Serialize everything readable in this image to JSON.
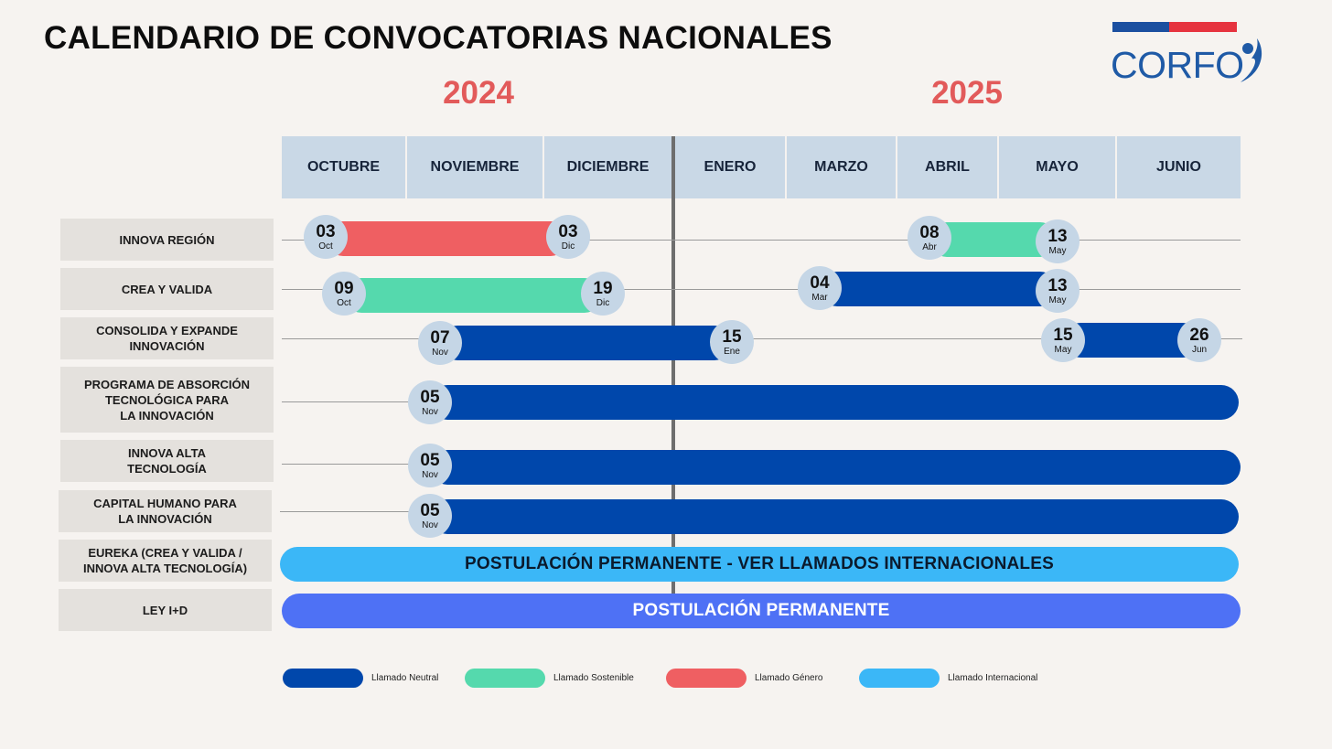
{
  "title": "CALENDARIO DE CONVOCATORIAS NACIONALES",
  "logo_text": "CORFO",
  "years": [
    "2024",
    "2025"
  ],
  "months": [
    "OCTUBRE",
    "NOVIEMBRE",
    "DICIEMBRE",
    "ENERO",
    "MARZO",
    "ABRIL",
    "MAYO",
    "JUNIO"
  ],
  "colors": {
    "neutral": "#0047ab",
    "sustain": "#55d9ad",
    "gender": "#ef5f62",
    "intl": "#3bb7f7",
    "permanent": "#4e71f5",
    "year": "#e25a5a"
  },
  "rows": [
    "INNOVA REGIÓN",
    "CREA Y VALIDA",
    "CONSOLIDA Y EXPANDE\nINNOVACIÓN",
    "PROGRAMA DE ABSORCIÓN\nTECNOLÓGICA PARA\nLA INNOVACIÓN",
    "INNOVA ALTA\nTECNOLOGÍA",
    "CAPITAL HUMANO PARA\nLA INNOVACIÓN",
    "EUREKA (CREA Y VALIDA /\nINNOVA ALTA TECNOLOGÍA)",
    "LEY I+D"
  ],
  "calls": [
    {
      "row": 0,
      "type": "gender",
      "start": {
        "day": "03",
        "month": "Oct"
      },
      "end": {
        "day": "03",
        "month": "Dic"
      }
    },
    {
      "row": 0,
      "type": "sustain",
      "start": {
        "day": "08",
        "month": "Abr"
      },
      "end": {
        "day": "13",
        "month": "May"
      }
    },
    {
      "row": 1,
      "type": "sustain",
      "start": {
        "day": "09",
        "month": "Oct"
      },
      "end": {
        "day": "19",
        "month": "Dic"
      }
    },
    {
      "row": 1,
      "type": "neutral",
      "start": {
        "day": "04",
        "month": "Mar"
      },
      "end": {
        "day": "13",
        "month": "May"
      }
    },
    {
      "row": 2,
      "type": "neutral",
      "start": {
        "day": "07",
        "month": "Nov"
      },
      "end": {
        "day": "15",
        "month": "Ene"
      }
    },
    {
      "row": 2,
      "type": "neutral",
      "start": {
        "day": "15",
        "month": "May"
      },
      "end": {
        "day": "26",
        "month": "Jun"
      }
    },
    {
      "row": 3,
      "type": "neutral",
      "start": {
        "day": "05",
        "month": "Nov"
      },
      "end": null
    },
    {
      "row": 4,
      "type": "neutral",
      "start": {
        "day": "05",
        "month": "Nov"
      },
      "end": null
    },
    {
      "row": 5,
      "type": "neutral",
      "start": {
        "day": "05",
        "month": "Nov"
      },
      "end": null
    },
    {
      "row": 6,
      "type": "intl",
      "text": "POSTULACIÓN PERMANENTE - VER LLAMADOS INTERNACIONALES"
    },
    {
      "row": 7,
      "type": "permanent",
      "text": "POSTULACIÓN PERMANENTE"
    }
  ],
  "legend": [
    {
      "type": "neutral",
      "label": "Llamado Neutral"
    },
    {
      "type": "sustain",
      "label": "Llamado Sostenible"
    },
    {
      "type": "gender",
      "label": "Llamado Género"
    },
    {
      "type": "intl",
      "label": "Llamado Internacional"
    }
  ]
}
